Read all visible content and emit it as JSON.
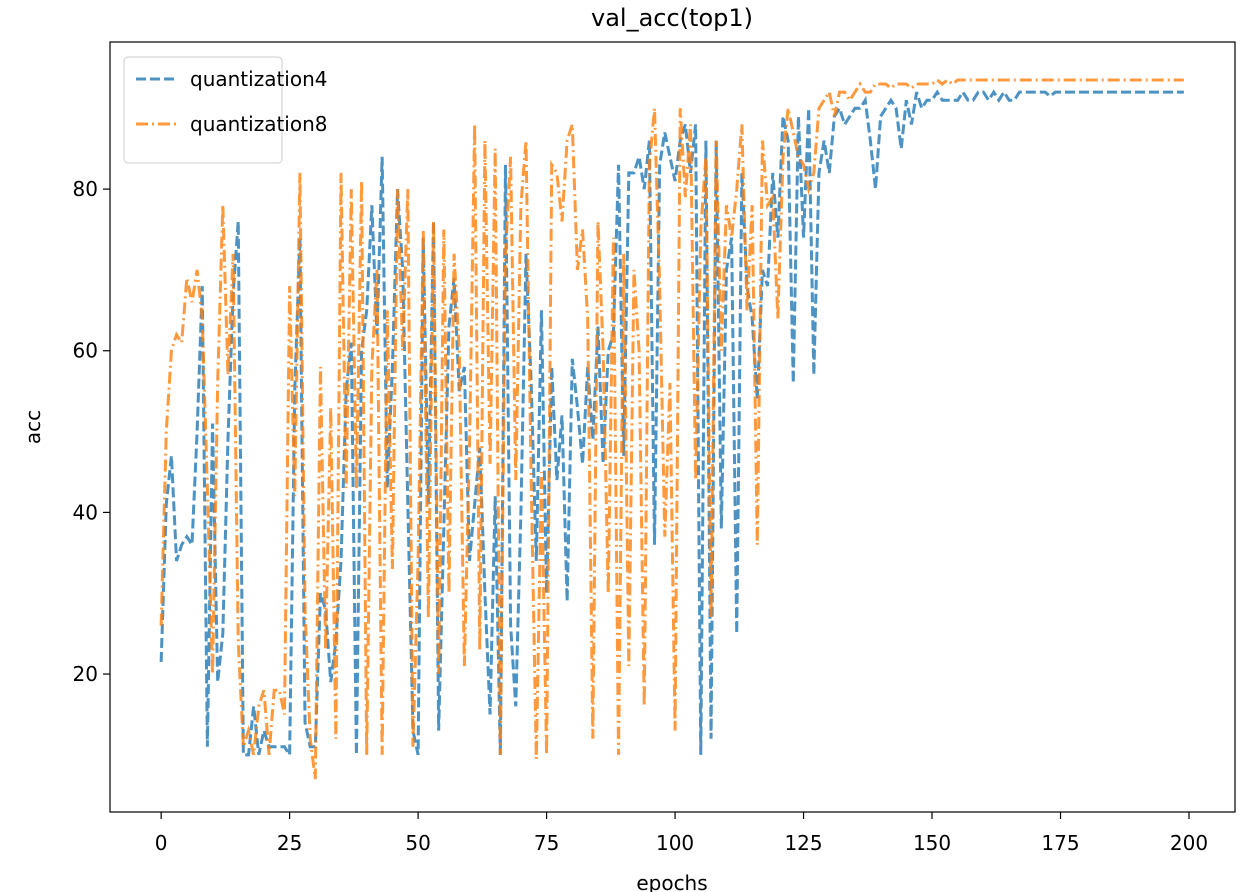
{
  "chart_data": {
    "type": "line",
    "title": "val_acc(top1)",
    "x_label": "epochs",
    "y_label": "acc",
    "x": [
      0,
      1,
      2,
      3,
      4,
      5,
      6,
      7,
      8,
      9,
      10,
      11,
      12,
      13,
      14,
      15,
      16,
      17,
      18,
      19,
      20,
      21,
      22,
      23,
      24,
      25,
      26,
      27,
      28,
      29,
      30,
      31,
      32,
      33,
      34,
      35,
      36,
      37,
      38,
      39,
      40,
      41,
      42,
      43,
      44,
      45,
      46,
      47,
      48,
      49,
      50,
      51,
      52,
      53,
      54,
      55,
      56,
      57,
      58,
      59,
      60,
      61,
      62,
      63,
      64,
      65,
      66,
      67,
      68,
      69,
      70,
      71,
      72,
      73,
      74,
      75,
      76,
      77,
      78,
      79,
      80,
      81,
      82,
      83,
      84,
      85,
      86,
      87,
      88,
      89,
      90,
      91,
      92,
      93,
      94,
      95,
      96,
      97,
      98,
      99,
      100,
      101,
      102,
      103,
      104,
      105,
      106,
      107,
      108,
      109,
      110,
      111,
      112,
      113,
      114,
      115,
      116,
      117,
      118,
      119,
      120,
      121,
      122,
      123,
      124,
      125,
      126,
      127,
      128,
      129,
      130,
      131,
      132,
      133,
      134,
      135,
      136,
      137,
      138,
      139,
      140,
      141,
      142,
      143,
      144,
      145,
      146,
      147,
      148,
      149,
      150,
      151,
      152,
      153,
      154,
      155,
      156,
      157,
      158,
      159,
      160,
      161,
      162,
      163,
      164,
      165,
      166,
      167,
      168,
      169,
      170,
      171,
      172,
      173,
      174,
      175,
      176,
      177,
      178,
      179,
      180,
      181,
      182,
      183,
      184,
      185,
      186,
      187,
      188,
      189,
      190,
      191,
      192,
      193,
      194,
      195,
      196,
      197,
      198,
      199
    ],
    "series": [
      {
        "name": "quantization4",
        "color": "#1f77b4",
        "dash": "dashed",
        "values": [
          21.5,
          41,
          47,
          34,
          36,
          37,
          36,
          50,
          68,
          11,
          51,
          19,
          25,
          49,
          67,
          76,
          10,
          10,
          16,
          10,
          13,
          11,
          11,
          11,
          11,
          10,
          55,
          74,
          14,
          11,
          11,
          30,
          28,
          19,
          24,
          34,
          55,
          61,
          10,
          60,
          65,
          78,
          62,
          84,
          43,
          58,
          80,
          70,
          41,
          13,
          10,
          74,
          41,
          76,
          13,
          38,
          63,
          69,
          55,
          58,
          34,
          41,
          48,
          30,
          15,
          42,
          10,
          83,
          26,
          16,
          40,
          72,
          56,
          34,
          65,
          30,
          58,
          44,
          52,
          29,
          59,
          53,
          46,
          58,
          49,
          63,
          46,
          60,
          62,
          83,
          47,
          82,
          82,
          84,
          80,
          86,
          36,
          83,
          87,
          84,
          81,
          86,
          88,
          82,
          88,
          10,
          86,
          12,
          86,
          38,
          70,
          74,
          25,
          82,
          68,
          64,
          54,
          70,
          68,
          82,
          74,
          89,
          86,
          56,
          89,
          74,
          90,
          57,
          82,
          86,
          82,
          89,
          90,
          88,
          89,
          90,
          90,
          91,
          86,
          80,
          89,
          90,
          91,
          90,
          85,
          91,
          88,
          92,
          90,
          91,
          91,
          92,
          91,
          91,
          91,
          91,
          92,
          91,
          91,
          92,
          92,
          91,
          92,
          91,
          92,
          91,
          91,
          92,
          92,
          92,
          92,
          92,
          92,
          91.5,
          92,
          92,
          92,
          92,
          92,
          92,
          92,
          92,
          92,
          92,
          92,
          92,
          92,
          92,
          92,
          92,
          92,
          92,
          92,
          92,
          92,
          92,
          92,
          92,
          92,
          92
        ]
      },
      {
        "name": "quantization8",
        "color": "#ff7f0e",
        "dash": "dashdot",
        "values": [
          26,
          50,
          60,
          62,
          61,
          69,
          66,
          70,
          64,
          43,
          20,
          56,
          78,
          57,
          72,
          24,
          11,
          13,
          10,
          16,
          18,
          10,
          18,
          18,
          15,
          68,
          42,
          82,
          28,
          12,
          7,
          58,
          23,
          53,
          12,
          82,
          43,
          80,
          43,
          81,
          10,
          58,
          70,
          10,
          65,
          33,
          80,
          60,
          80,
          11,
          34,
          75,
          27,
          76,
          20,
          75,
          30,
          72,
          60,
          21,
          48,
          88,
          23,
          86,
          46,
          85,
          10,
          72,
          84,
          44,
          78,
          86,
          44,
          9.5,
          45,
          10,
          83,
          82,
          76,
          86,
          88,
          70,
          75,
          64,
          12,
          76,
          60,
          30,
          74,
          10,
          72,
          21,
          70,
          60,
          16,
          83,
          90,
          68,
          37,
          56,
          13,
          90,
          79,
          88,
          44,
          75,
          84,
          27,
          86,
          60,
          78,
          74,
          80,
          88,
          65,
          78,
          36,
          86,
          78,
          79,
          64,
          84,
          90,
          87,
          84,
          83,
          80,
          82,
          90,
          91,
          92,
          89,
          92,
          92,
          91,
          92,
          93,
          92,
          92,
          93,
          93,
          93,
          92.5,
          93,
          93,
          93,
          92.5,
          93,
          93,
          93,
          93,
          93.5,
          93,
          93.5,
          93,
          93.5,
          93.5,
          93.5,
          93.5,
          93.5,
          93.5,
          93.5,
          93.5,
          93.5,
          93.5,
          93.5,
          93.5,
          93.5,
          93.5,
          93.5,
          93.5,
          93.5,
          93.5,
          93.5,
          93.5,
          93.5,
          93.5,
          93.5,
          93.5,
          93.5,
          93.5,
          93.5,
          93.5,
          93.5,
          93.5,
          93.5,
          93.5,
          93.5,
          93.5,
          93.5,
          93.5,
          93.5,
          93.5,
          93.5,
          93.5,
          93.5,
          93.5,
          93.5,
          93.5,
          93.5
        ]
      }
    ],
    "xlim": [
      -9.95,
      208.95
    ],
    "ylim": [
      2.93,
      98.2
    ],
    "xticks": [
      0,
      25,
      50,
      75,
      100,
      125,
      150,
      175,
      200
    ],
    "yticks": [
      20,
      40,
      60,
      80
    ],
    "legend": "upper left",
    "grid": false
  }
}
